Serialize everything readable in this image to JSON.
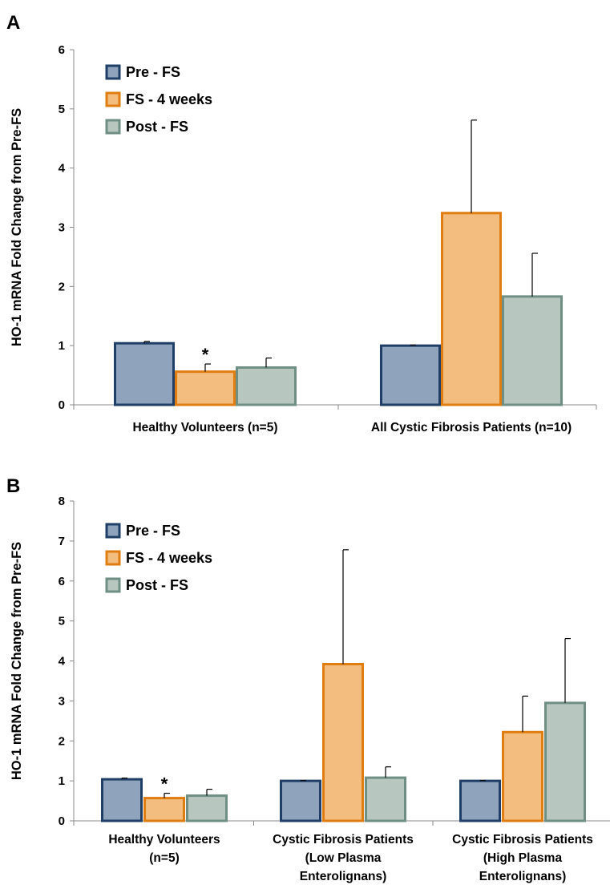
{
  "chart_data": [
    {
      "panel": "A",
      "type": "bar",
      "ylabel": "HO-1 mRNA Fold Change from Pre-FS",
      "ylim": [
        0,
        6
      ],
      "yticks": [
        0,
        1,
        2,
        3,
        4,
        5,
        6
      ],
      "legend_position": "top-left",
      "grid": false,
      "categories": [
        [
          "Healthy Volunteers (n=5)"
        ],
        [
          "All Cystic Fibrosis Patients (n=10)"
        ]
      ],
      "series": [
        {
          "name": "Pre - FS",
          "fill": "#8FA3BD",
          "stroke": "#1F3F66",
          "values": [
            1.04,
            1.0
          ],
          "errors": [
            0.03,
            0.01
          ]
        },
        {
          "name": "FS - 4 weeks",
          "fill": "#F4BD80",
          "stroke": "#E07D10",
          "values": [
            0.56,
            3.24
          ],
          "errors": [
            0.13,
            1.57
          ]
        },
        {
          "name": "Post - FS",
          "fill": "#B7C7C0",
          "stroke": "#6F8F84",
          "values": [
            0.63,
            1.83
          ],
          "errors": [
            0.16,
            0.73
          ]
        }
      ],
      "annotations": [
        {
          "text": "*",
          "category": 0,
          "series": 1
        }
      ]
    },
    {
      "panel": "B",
      "type": "bar",
      "ylabel": "HO-1 mRNA Fold Change from Pre-FS",
      "ylim": [
        0,
        8
      ],
      "yticks": [
        0,
        1,
        2,
        3,
        4,
        5,
        6,
        7,
        8
      ],
      "legend_position": "top-left",
      "grid": false,
      "categories": [
        [
          "Healthy Volunteers",
          "(n=5)"
        ],
        [
          "Cystic Fibrosis Patients",
          "(Low Plasma",
          "Enterolignans)"
        ],
        [
          "Cystic Fibrosis Patients",
          "(High Plasma",
          "Enterolignans)"
        ]
      ],
      "series": [
        {
          "name": "Pre - FS",
          "fill": "#8FA3BD",
          "stroke": "#1F3F66",
          "values": [
            1.04,
            1.0,
            1.0
          ],
          "errors": [
            0.03,
            0.01,
            0.01
          ]
        },
        {
          "name": "FS - 4 weeks",
          "fill": "#F4BD80",
          "stroke": "#E07D10",
          "values": [
            0.57,
            3.92,
            2.22
          ],
          "errors": [
            0.12,
            2.86,
            0.9
          ]
        },
        {
          "name": "Post - FS",
          "fill": "#B7C7C0",
          "stroke": "#6F8F84",
          "values": [
            0.63,
            1.08,
            2.95
          ],
          "errors": [
            0.16,
            0.27,
            1.61
          ]
        }
      ],
      "annotations": [
        {
          "text": "*",
          "category": 0,
          "series": 1
        }
      ]
    }
  ]
}
